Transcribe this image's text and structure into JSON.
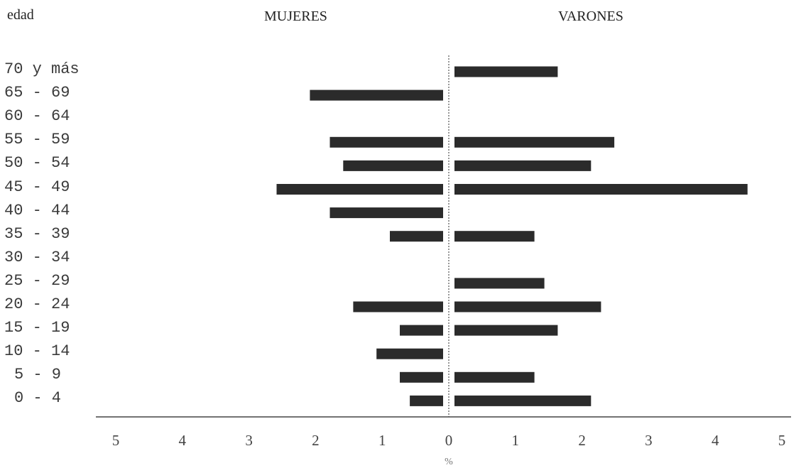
{
  "chart_data": {
    "type": "bar",
    "orientation": "horizontal",
    "layout": "population-pyramid",
    "title": "",
    "ylabel": "edad",
    "xlabel": "%",
    "categories": [
      "70 y más",
      "65 - 69",
      "60 - 64",
      "55 - 59",
      "50 - 54",
      "45 - 49",
      "40 - 44",
      "35 - 39",
      "30 - 34",
      "25 - 29",
      "20 - 24",
      "15 - 19",
      "10 - 14",
      "5 - 9",
      "0 - 4"
    ],
    "series": [
      {
        "name": "MUJERES",
        "side": "left",
        "values": [
          0,
          2.0,
          0,
          1.7,
          1.5,
          2.5,
          1.7,
          0.8,
          0,
          0,
          1.35,
          0.65,
          1.0,
          0.65,
          0.5
        ]
      },
      {
        "name": "VARONES",
        "side": "right",
        "values": [
          1.55,
          0,
          0,
          2.4,
          2.05,
          4.4,
          0,
          1.2,
          0,
          1.35,
          2.2,
          1.55,
          0,
          1.2,
          2.05
        ]
      }
    ],
    "xticks_left": [
      "5",
      "4",
      "3",
      "2",
      "1"
    ],
    "xticks_right": [
      "0",
      "1",
      "2",
      "3",
      "4",
      "5"
    ],
    "xlim": [
      0,
      5
    ],
    "bar_color": "#2b2b2b",
    "grid": false
  }
}
